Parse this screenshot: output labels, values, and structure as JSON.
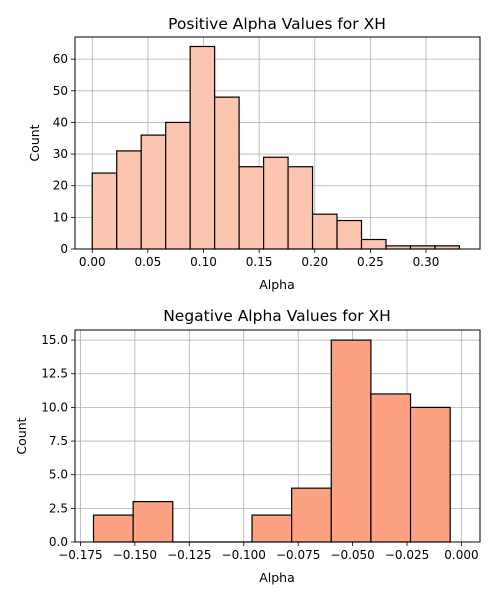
{
  "chart_data": [
    {
      "type": "bar",
      "title": "Positive Alpha Values for XH",
      "xlabel": "Alpha",
      "ylabel": "Count",
      "color": "#fcc5b0",
      "edge_color": "#000000",
      "grid": true,
      "xlim": [
        -0.0155,
        0.3485
      ],
      "ylim": [
        0,
        67
      ],
      "xticks": [
        "0.00",
        "0.05",
        "0.10",
        "0.15",
        "0.20",
        "0.25",
        "0.30"
      ],
      "yticks": [
        "0",
        "10",
        "20",
        "30",
        "40",
        "50",
        "60"
      ],
      "bins": [
        {
          "start": 0.0,
          "end": 0.022,
          "count": 24
        },
        {
          "start": 0.022,
          "end": 0.044,
          "count": 31
        },
        {
          "start": 0.044,
          "end": 0.066,
          "count": 36
        },
        {
          "start": 0.066,
          "end": 0.088,
          "count": 40
        },
        {
          "start": 0.088,
          "end": 0.11,
          "count": 64
        },
        {
          "start": 0.11,
          "end": 0.132,
          "count": 48
        },
        {
          "start": 0.132,
          "end": 0.154,
          "count": 26
        },
        {
          "start": 0.154,
          "end": 0.176,
          "count": 29
        },
        {
          "start": 0.176,
          "end": 0.198,
          "count": 26
        },
        {
          "start": 0.198,
          "end": 0.22,
          "count": 11
        },
        {
          "start": 0.22,
          "end": 0.242,
          "count": 9
        },
        {
          "start": 0.242,
          "end": 0.264,
          "count": 3
        },
        {
          "start": 0.264,
          "end": 0.286,
          "count": 1
        },
        {
          "start": 0.286,
          "end": 0.308,
          "count": 1
        },
        {
          "start": 0.308,
          "end": 0.33,
          "count": 1
        }
      ]
    },
    {
      "type": "bar",
      "title": "Negative Alpha Values for XH",
      "xlabel": "Alpha",
      "ylabel": "Count",
      "color": "#fca283",
      "edge_color": "#000000",
      "grid": true,
      "xlim": [
        -0.1775,
        0.0085
      ],
      "ylim": [
        0,
        15.75
      ],
      "xticks": [
        "−0.175",
        "−0.150",
        "−0.125",
        "−0.100",
        "−0.075",
        "−0.050",
        "−0.025",
        "0.000"
      ],
      "yticks": [
        "0.0",
        "2.5",
        "5.0",
        "7.5",
        "10.0",
        "12.5",
        "15.0"
      ],
      "bins": [
        {
          "start": -0.169,
          "end": -0.1508,
          "count": 2
        },
        {
          "start": -0.1508,
          "end": -0.1326,
          "count": 3
        },
        {
          "start": -0.1326,
          "end": -0.1144,
          "count": 0
        },
        {
          "start": -0.1144,
          "end": -0.0962,
          "count": 0
        },
        {
          "start": -0.0962,
          "end": -0.078,
          "count": 2
        },
        {
          "start": -0.078,
          "end": -0.0598,
          "count": 4
        },
        {
          "start": -0.0598,
          "end": -0.0416,
          "count": 15
        },
        {
          "start": -0.0416,
          "end": -0.0234,
          "count": 11
        },
        {
          "start": -0.0234,
          "end": -0.0052,
          "count": 10
        }
      ]
    }
  ]
}
